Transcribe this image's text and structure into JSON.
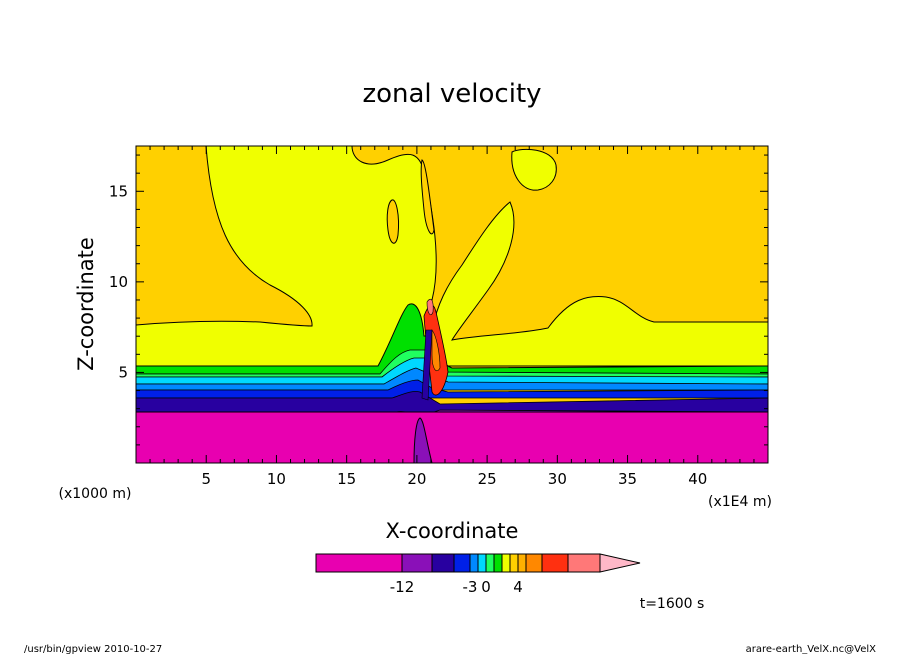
{
  "chart_data": {
    "type": "heatmap",
    "title": "zonal velocity",
    "xlabel": "X-coordinate",
    "ylabel": "Z-coordinate",
    "x_unit_left": "(x1000 m)",
    "x_unit_right": "(x1E4 m)",
    "xlim": [
      0,
      45
    ],
    "ylim": [
      0,
      17.5
    ],
    "x_ticks": [
      "5",
      "10",
      "15",
      "20",
      "25",
      "30",
      "35",
      "40"
    ],
    "y_ticks": [
      "5",
      "10",
      "15"
    ],
    "colorbar": {
      "colors": [
        "#e800b0",
        "#8a10b8",
        "#2800a0",
        "#0020e8",
        "#0088ff",
        "#00d8ff",
        "#20ff60",
        "#00e000",
        "#f0ff00",
        "#ffd000",
        "#ffb000",
        "#ff8800",
        "#ff3010",
        "#ff7878",
        "#ffb8c8"
      ],
      "tick_labels": [
        "-12",
        "-3",
        "0",
        "4"
      ]
    },
    "time_label": "t=1600 s"
  },
  "footer": {
    "left": "/usr/bin/gpview   2010-10-27",
    "right": "arare-earth_VelX.nc@VelX"
  }
}
